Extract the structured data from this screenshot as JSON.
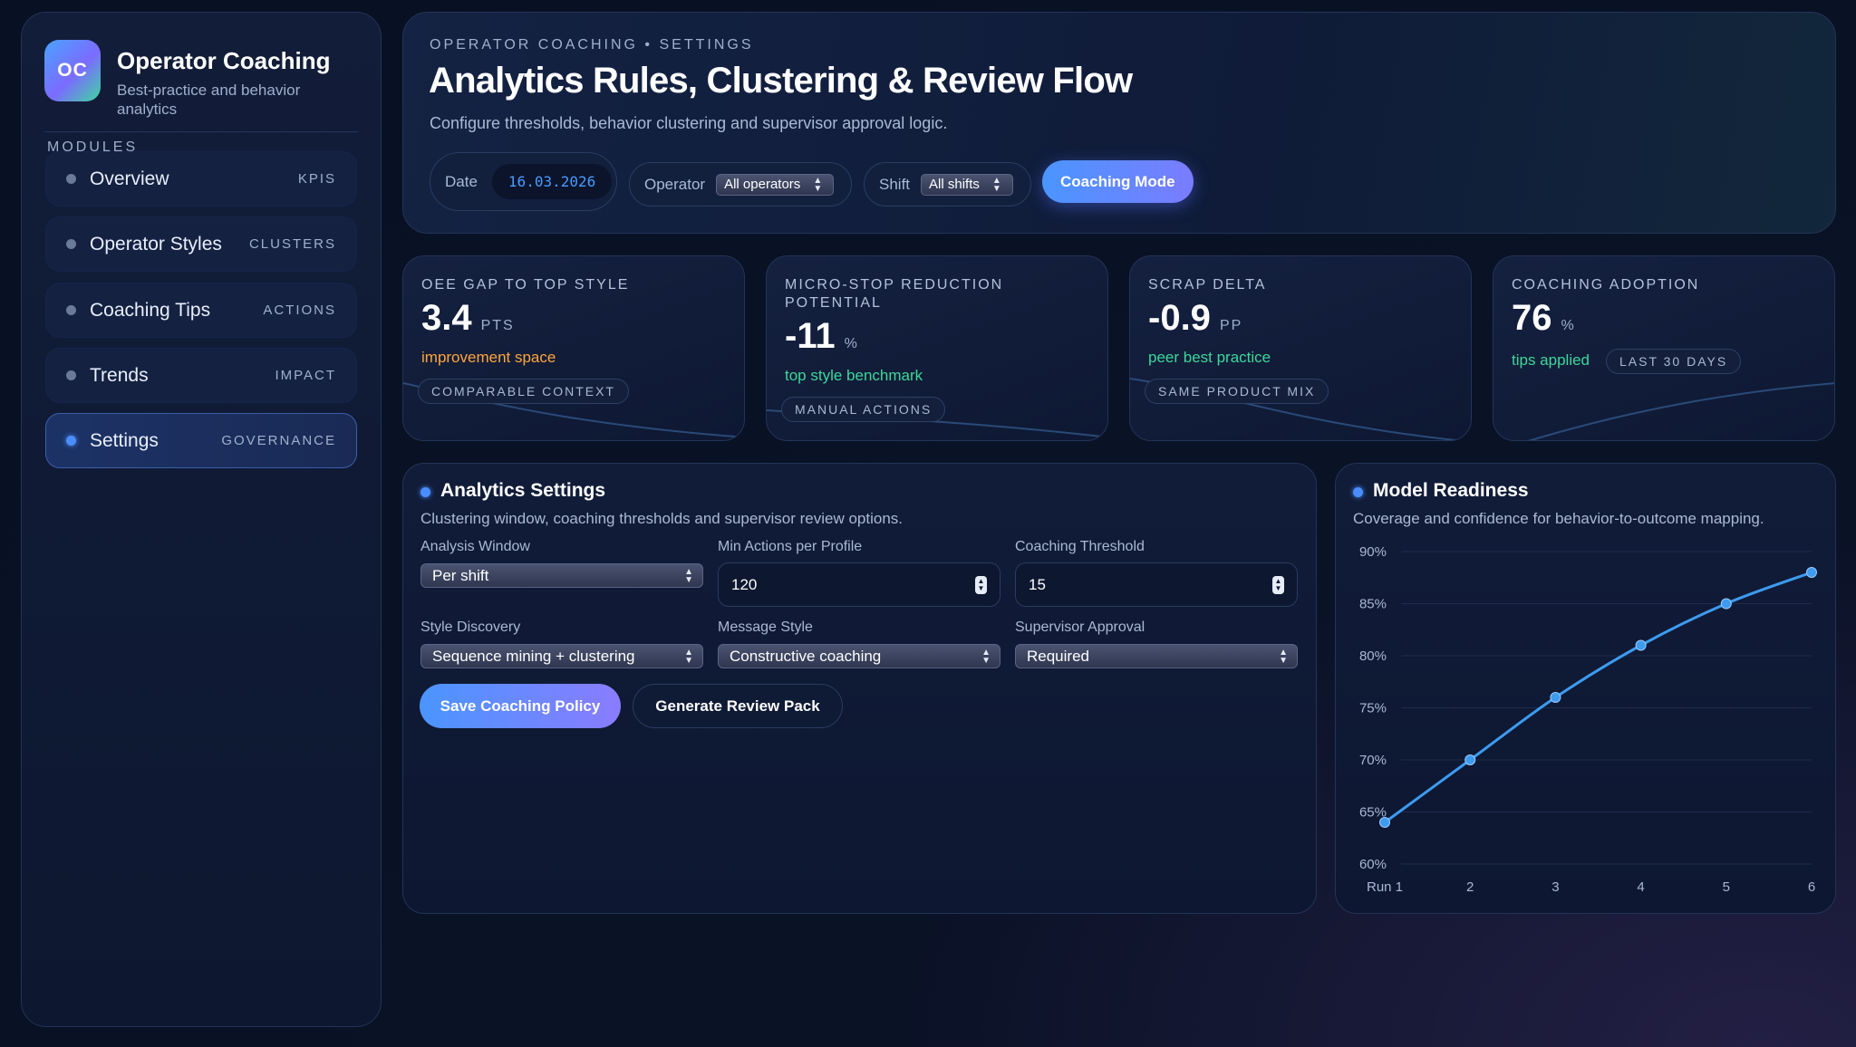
{
  "sidebar": {
    "logo_text": "OC",
    "title": "Operator Coaching",
    "subtitle": "Best-practice and behavior analytics",
    "modules_label": "MODULES",
    "items": [
      {
        "label": "Overview",
        "tag": "KPIS"
      },
      {
        "label": "Operator Styles",
        "tag": "CLUSTERS"
      },
      {
        "label": "Coaching Tips",
        "tag": "ACTIONS"
      },
      {
        "label": "Trends",
        "tag": "IMPACT"
      },
      {
        "label": "Settings",
        "tag": "GOVERNANCE",
        "active": true
      }
    ]
  },
  "header": {
    "eyebrow": "OPERATOR COACHING • SETTINGS",
    "title": "Analytics Rules, Clustering & Review Flow",
    "subtitle": "Configure thresholds, behavior clustering and supervisor approval logic.",
    "date_label": "Date",
    "date_value": "16.03.2026",
    "operator_label": "Operator",
    "operator_value": "All operators",
    "shift_label": "Shift",
    "shift_value": "All shifts",
    "mode_button": "Coaching Mode"
  },
  "kpis": [
    {
      "label": "OEE GAP TO TOP STYLE",
      "value": "3.4",
      "unit": "PTS",
      "note": "improvement space",
      "note_color": "#ffa63d",
      "badge": "COMPARABLE CONTEXT"
    },
    {
      "label": "MICRO-STOP REDUCTION POTENTIAL",
      "value": "-11",
      "unit": "%",
      "note": "top style benchmark",
      "note_color": "#3ed79a",
      "badge": "MANUAL ACTIONS"
    },
    {
      "label": "SCRAP DELTA",
      "value": "-0.9",
      "unit": "PP",
      "note": "peer best practice",
      "note_color": "#3ed79a",
      "badge": "SAME PRODUCT MIX"
    },
    {
      "label": "COACHING ADOPTION",
      "value": "76",
      "unit": "%",
      "note": "tips applied",
      "note_color": "#3ed79a",
      "badge": "LAST 30 DAYS"
    }
  ],
  "settings": {
    "title": "Analytics Settings",
    "subtitle": "Clustering window, coaching thresholds and supervisor review options.",
    "analysis_window_label": "Analysis Window",
    "analysis_window_value": "Per shift",
    "min_actions_label": "Min Actions per Profile",
    "min_actions_value": "120",
    "coaching_threshold_label": "Coaching Threshold",
    "coaching_threshold_value": "15",
    "style_discovery_label": "Style Discovery",
    "style_discovery_value": "Sequence mining + clustering",
    "message_style_label": "Message Style",
    "message_style_value": "Constructive coaching",
    "supervisor_approval_label": "Supervisor Approval",
    "supervisor_approval_value": "Required",
    "save_button": "Save Coaching Policy",
    "review_button": "Generate Review Pack"
  },
  "readiness": {
    "title": "Model Readiness",
    "subtitle": "Coverage and confidence for behavior-to-outcome mapping."
  },
  "chart_data": {
    "type": "line",
    "categories": [
      "Run 1",
      "2",
      "3",
      "4",
      "5",
      "6"
    ],
    "series": [
      {
        "values": [
          64,
          70,
          76,
          81,
          85,
          88
        ]
      }
    ],
    "y_ticks": [
      "90%",
      "85%",
      "80%",
      "75%",
      "70%",
      "65%",
      "60%"
    ],
    "ylim": [
      60,
      90
    ],
    "grid": true,
    "line_color": "#3d9bf0"
  }
}
